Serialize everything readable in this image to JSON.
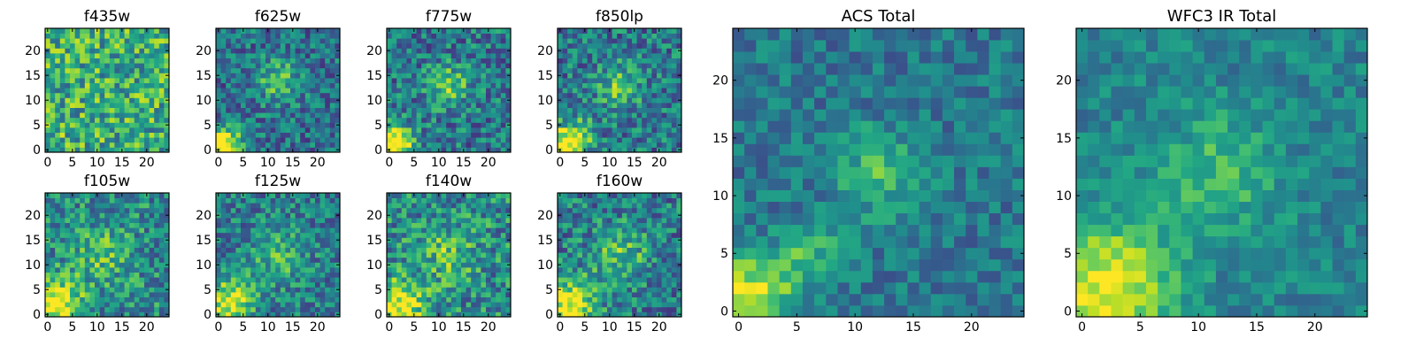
{
  "chart_data": [
    {
      "type": "heatmap",
      "title": "f435w",
      "xlim": [
        0,
        24
      ],
      "ylim": [
        0,
        24
      ],
      "grid_size": [
        25,
        25
      ],
      "xticks": [
        0,
        5,
        10,
        15,
        20
      ],
      "yticks": [
        0,
        5,
        10,
        15,
        20
      ],
      "colormap": "viridis",
      "base": 0.62,
      "noise": 0.3,
      "blobs": [
        [
          1,
          1,
          0.05,
          3
        ]
      ],
      "seed": 11
    },
    {
      "type": "heatmap",
      "title": "f625w",
      "xlim": [
        0,
        24
      ],
      "ylim": [
        0,
        24
      ],
      "grid_size": [
        25,
        25
      ],
      "xticks": [
        0,
        5,
        10,
        15,
        20
      ],
      "yticks": [
        0,
        5,
        10,
        15,
        20
      ],
      "colormap": "viridis",
      "base": 0.38,
      "noise": 0.24,
      "blobs": [
        [
          12,
          14,
          0.35,
          3
        ],
        [
          1,
          1,
          0.75,
          2.5
        ]
      ],
      "seed": 23
    },
    {
      "type": "heatmap",
      "title": "f775w",
      "xlim": [
        0,
        24
      ],
      "ylim": [
        0,
        24
      ],
      "grid_size": [
        25,
        25
      ],
      "xticks": [
        0,
        5,
        10,
        15,
        20
      ],
      "yticks": [
        0,
        5,
        10,
        15,
        20
      ],
      "colormap": "viridis",
      "base": 0.4,
      "noise": 0.26,
      "blobs": [
        [
          12,
          13,
          0.35,
          3
        ],
        [
          1,
          1,
          0.75,
          2.8
        ]
      ],
      "seed": 37
    },
    {
      "type": "heatmap",
      "title": "f850lp",
      "xlim": [
        0,
        24
      ],
      "ylim": [
        0,
        24
      ],
      "grid_size": [
        25,
        25
      ],
      "xticks": [
        0,
        5,
        10,
        15,
        20
      ],
      "yticks": [
        0,
        5,
        10,
        15,
        20
      ],
      "colormap": "viridis",
      "base": 0.4,
      "noise": 0.26,
      "blobs": [
        [
          12,
          13,
          0.35,
          3
        ],
        [
          1,
          1,
          0.7,
          2.8
        ],
        [
          5,
          4,
          0.2,
          2
        ]
      ],
      "seed": 41
    },
    {
      "type": "heatmap",
      "title": "f105w",
      "xlim": [
        0,
        24
      ],
      "ylim": [
        0,
        24
      ],
      "grid_size": [
        25,
        25
      ],
      "xticks": [
        0,
        5,
        10,
        15,
        20
      ],
      "yticks": [
        0,
        5,
        10,
        15,
        20
      ],
      "colormap": "viridis",
      "base": 0.48,
      "noise": 0.26,
      "blobs": [
        [
          11,
          12,
          0.22,
          4
        ],
        [
          2,
          2,
          0.55,
          3.5
        ]
      ],
      "seed": 53
    },
    {
      "type": "heatmap",
      "title": "f125w",
      "xlim": [
        0,
        24
      ],
      "ylim": [
        0,
        24
      ],
      "grid_size": [
        25,
        25
      ],
      "xticks": [
        0,
        5,
        10,
        15,
        20
      ],
      "yticks": [
        0,
        5,
        10,
        15,
        20
      ],
      "colormap": "viridis",
      "base": 0.42,
      "noise": 0.24,
      "blobs": [
        [
          12,
          12,
          0.25,
          4
        ],
        [
          2,
          2,
          0.55,
          3.5
        ]
      ],
      "seed": 67
    },
    {
      "type": "heatmap",
      "title": "f140w",
      "xlim": [
        0,
        24
      ],
      "ylim": [
        0,
        24
      ],
      "grid_size": [
        25,
        25
      ],
      "xticks": [
        0,
        5,
        10,
        15,
        20
      ],
      "yticks": [
        0,
        5,
        10,
        15,
        20
      ],
      "colormap": "viridis",
      "base": 0.48,
      "noise": 0.28,
      "blobs": [
        [
          12,
          12,
          0.25,
          4
        ],
        [
          2,
          2,
          0.55,
          3.5
        ]
      ],
      "seed": 71
    },
    {
      "type": "heatmap",
      "title": "f160w",
      "xlim": [
        0,
        24
      ],
      "ylim": [
        0,
        24
      ],
      "grid_size": [
        25,
        25
      ],
      "xticks": [
        0,
        5,
        10,
        15,
        20
      ],
      "yticks": [
        0,
        5,
        10,
        15,
        20
      ],
      "colormap": "viridis",
      "base": 0.42,
      "noise": 0.26,
      "blobs": [
        [
          12,
          12,
          0.3,
          4
        ],
        [
          2,
          2,
          0.6,
          3.5
        ]
      ],
      "seed": 83
    },
    {
      "type": "heatmap",
      "title": "ACS Total",
      "xlim": [
        0,
        24
      ],
      "ylim": [
        0,
        24
      ],
      "grid_size": [
        25,
        25
      ],
      "xticks": [
        0,
        5,
        10,
        15,
        20
      ],
      "yticks": [
        0,
        5,
        10,
        15,
        20
      ],
      "colormap": "viridis",
      "base": 0.4,
      "noise": 0.16,
      "blobs": [
        [
          12,
          12,
          0.3,
          2.5
        ],
        [
          1,
          1,
          0.6,
          2.5
        ],
        [
          6,
          5,
          0.25,
          2
        ]
      ],
      "seed": 97
    },
    {
      "type": "heatmap",
      "title": "WFC3 IR Total",
      "xlim": [
        0,
        24
      ],
      "ylim": [
        0,
        24
      ],
      "grid_size": [
        25,
        25
      ],
      "xticks": [
        0,
        5,
        10,
        15,
        20
      ],
      "yticks": [
        0,
        5,
        10,
        15,
        20
      ],
      "colormap": "viridis",
      "base": 0.45,
      "noise": 0.14,
      "blobs": [
        [
          12,
          12,
          0.25,
          3.5
        ],
        [
          2,
          2,
          0.55,
          4
        ]
      ],
      "seed": 101
    }
  ]
}
